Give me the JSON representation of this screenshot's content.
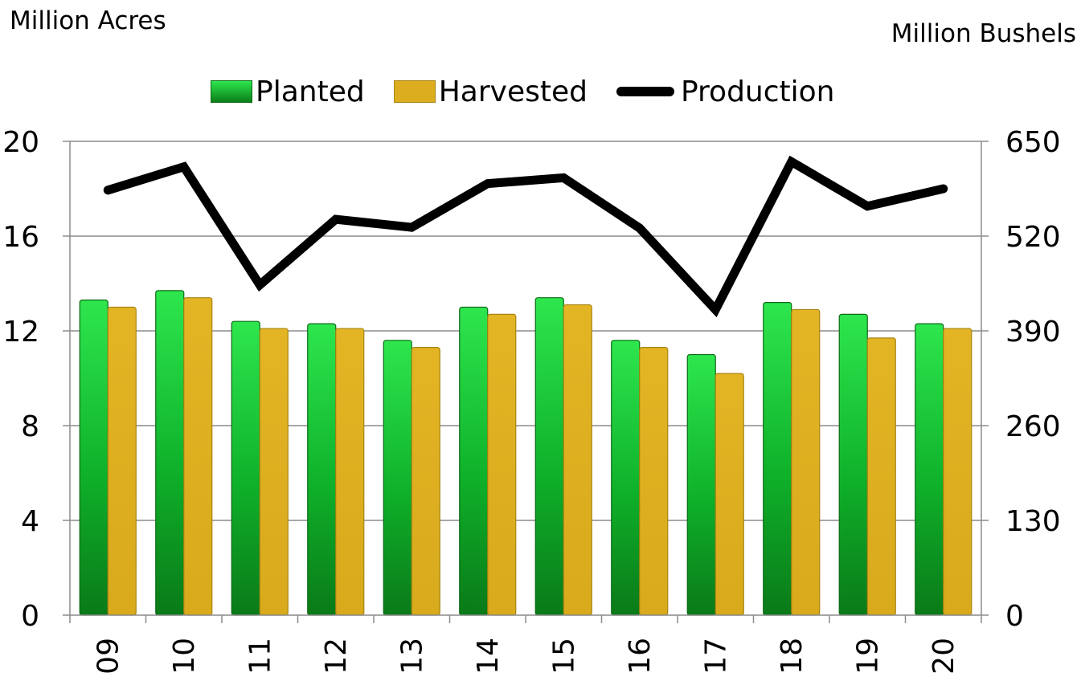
{
  "chart_data": {
    "type": "bar",
    "categories": [
      "09",
      "10",
      "11",
      "12",
      "13",
      "14",
      "15",
      "16",
      "17",
      "18",
      "19",
      "20"
    ],
    "series": [
      {
        "name": "Planted",
        "kind": "bar",
        "axis": "left",
        "color": "#1fd13e",
        "values": [
          13.3,
          13.7,
          12.4,
          12.3,
          11.6,
          13.0,
          13.4,
          11.6,
          11.0,
          13.2,
          12.7,
          12.3
        ]
      },
      {
        "name": "Harvested",
        "kind": "bar",
        "axis": "left",
        "color": "#dcae1f",
        "values": [
          13.0,
          13.4,
          12.1,
          12.1,
          11.3,
          12.7,
          13.1,
          11.3,
          10.2,
          12.9,
          11.7,
          12.1
        ]
      },
      {
        "name": "Production",
        "kind": "line",
        "axis": "right",
        "color": "#000000",
        "values": [
          583,
          615,
          453,
          543,
          532,
          592,
          600,
          531,
          419,
          622,
          561,
          585
        ]
      }
    ],
    "ylabel_left": "Million Acres",
    "ylabel_right": "Million Bushels",
    "ylim_left": [
      0,
      20
    ],
    "ylim_right": [
      0,
      650
    ],
    "yticks_left": [
      "0",
      "4",
      "8",
      "12",
      "16",
      "20"
    ],
    "yticks_right": [
      "0",
      "130",
      "260",
      "390",
      "520",
      "650"
    ],
    "grid": "horizontal",
    "legend_position": "top"
  }
}
